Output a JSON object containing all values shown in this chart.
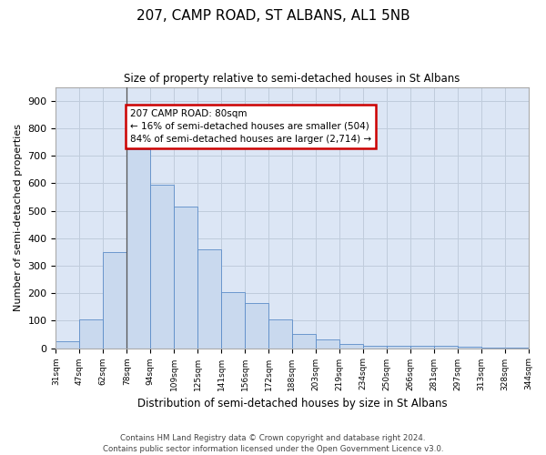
{
  "title1": "207, CAMP ROAD, ST ALBANS, AL1 5NB",
  "title2": "Size of property relative to semi-detached houses in St Albans",
  "xlabel": "Distribution of semi-detached houses by size in St Albans",
  "ylabel": "Number of semi-detached properties",
  "footnote": "Contains HM Land Registry data © Crown copyright and database right 2024.\nContains public sector information licensed under the Open Government Licence v3.0.",
  "bar_labels": [
    "31sqm",
    "47sqm",
    "62sqm",
    "78sqm",
    "94sqm",
    "109sqm",
    "125sqm",
    "141sqm",
    "156sqm",
    "172sqm",
    "188sqm",
    "203sqm",
    "219sqm",
    "234sqm",
    "250sqm",
    "266sqm",
    "281sqm",
    "297sqm",
    "313sqm",
    "328sqm",
    "344sqm"
  ],
  "bar_values": [
    25,
    105,
    350,
    725,
    595,
    515,
    360,
    205,
    165,
    105,
    50,
    32,
    15,
    10,
    8,
    10,
    8,
    5,
    3,
    2
  ],
  "bar_color": "#c9d9ee",
  "bar_edge_color": "#5b8cc8",
  "annotation_text": "207 CAMP ROAD: 80sqm\n← 16% of semi-detached houses are smaller (504)\n84% of semi-detached houses are larger (2,714) →",
  "annotation_box_color": "#ffffff",
  "annotation_border_color": "#cc0000",
  "ylim": [
    0,
    950
  ],
  "yticks": [
    0,
    100,
    200,
    300,
    400,
    500,
    600,
    700,
    800,
    900
  ],
  "bg_color": "#ffffff",
  "plot_bg_color": "#dce6f5",
  "grid_color": "#c0ccdc"
}
